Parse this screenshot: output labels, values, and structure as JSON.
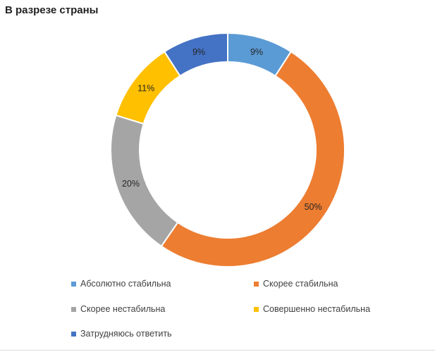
{
  "chart_data": {
    "type": "pie",
    "variant": "donut",
    "title": "В разрезе страны",
    "categories": [
      "Абсолютно стабильна",
      "Скорее стабильна",
      "Скорее нестабильна",
      "Совершенно нестабильна",
      "Затрудняюсь ответить"
    ],
    "values": [
      9,
      50,
      20,
      11,
      9
    ],
    "value_labels": [
      "9%",
      "50%",
      "20%",
      "11%",
      "9%"
    ],
    "unit": "%",
    "colors": [
      "#5B9BD5",
      "#ED7D31",
      "#A5A5A5",
      "#FFC000",
      "#4472C4"
    ],
    "legend_position": "bottom",
    "start_angle": "top, clockwise"
  }
}
